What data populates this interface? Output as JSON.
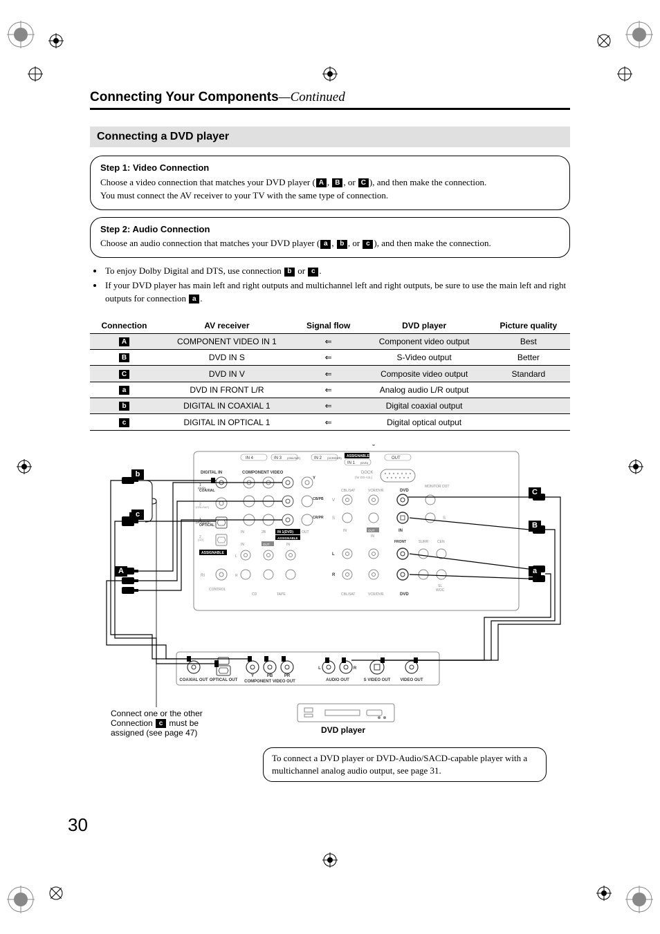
{
  "page_number": "30",
  "header": {
    "title": "Connecting Your Components",
    "continued": "—Continued"
  },
  "subsection_title": "Connecting a DVD player",
  "step1": {
    "title": "Step 1: Video Connection",
    "line1_a": "Choose a video connection that matches your DVD player (",
    "line1_b": ", ",
    "line1_c": ", or ",
    "line1_d": "), and then make the connection.",
    "line2": "You must connect the AV receiver to your TV with the same type of connection."
  },
  "step2": {
    "title": "Step 2: Audio Connection",
    "line1_a": "Choose an audio connection that matches your DVD player (",
    "line1_b": ", ",
    "line1_c": ", or ",
    "line1_d": "), and then make the connection."
  },
  "bullets": {
    "b1_a": "To enjoy Dolby Digital and DTS, use connection ",
    "b1_b": " or ",
    "b1_c": ".",
    "b2_a": "If your DVD player has main left and right outputs and multichannel left and right outputs, be sure to use the main left and right outputs for connection ",
    "b2_b": "."
  },
  "badges": {
    "A": "A",
    "B": "B",
    "C": "C",
    "a": "a",
    "b": "b",
    "c": "c"
  },
  "table": {
    "headers": [
      "Connection",
      "AV receiver",
      "Signal flow",
      "DVD player",
      "Picture quality"
    ],
    "rows": [
      {
        "shaded": true,
        "conn": "A",
        "recv": "COMPONENT VIDEO IN 1",
        "flow": "⇐",
        "player": "Component video output",
        "qual": "Best"
      },
      {
        "shaded": false,
        "conn": "B",
        "recv": "DVD IN S",
        "flow": "⇐",
        "player": "S-Video output",
        "qual": "Better"
      },
      {
        "shaded": true,
        "conn": "C",
        "recv": "DVD IN V",
        "flow": "⇐",
        "player": "Composite video output",
        "qual": "Standard"
      },
      {
        "shaded": false,
        "conn": "a",
        "recv": "DVD IN FRONT L/R",
        "flow": "⇐",
        "player": "Analog audio L/R output",
        "qual": ""
      },
      {
        "shaded": true,
        "conn": "b",
        "recv": "DIGITAL IN COAXIAL 1",
        "flow": "⇐",
        "player": "Digital coaxial output",
        "qual": ""
      },
      {
        "shaded": false,
        "conn": "c",
        "recv": "DIGITAL IN OPTICAL 1",
        "flow": "⇐",
        "player": "Digital optical output",
        "qual": ""
      }
    ]
  },
  "diagram": {
    "caption_top_a": "Connect one or the other",
    "caption_top_b_pre": "Connection ",
    "caption_top_b_post": " must be",
    "caption_top_c": "assigned (see page 47)",
    "dvd_label": "DVD player",
    "receiver_labels": {
      "digital_in": "DIGITAL IN",
      "component_video": "COMPONENT VIDEO",
      "coaxial": "COAXIAL",
      "optical": "OPTICAL",
      "assignable": "ASSIGNABLE",
      "in1_dvd": "IN 1(DVD)",
      "dock": "DOCK",
      "dock_sub": "(for DS-A1L)",
      "monitor_out": "MONITOR OUT",
      "cbl_sat": "CBL/SAT",
      "vcr_dvr": "VCR/DVR",
      "dvd": "DVD",
      "front": "FRONT",
      "surr": "SURR",
      "cen": "CEN",
      "sl": "SL",
      "woc": "WOC",
      "cd": "CD",
      "tape": "TAPE",
      "ri": "RI",
      "control": "CONTROL",
      "in": "IN",
      "out": "OUT",
      "L": "L",
      "R": "R",
      "V": "V",
      "S": "S",
      "Y": "Y",
      "CbPb": "CB/PB",
      "CrPr": "CR/PR",
      "in4": "IN 4",
      "in3": "IN 3",
      "in2": "IN 2",
      "in1": "IN 1",
      "in3_sub": "(CBL/SAT)",
      "in2_sub": "(VCR/DVR)",
      "in1_sub": "(DVD)",
      "dvd_num1": "1",
      "dvd_num2": "2"
    },
    "dvd_back_labels": {
      "coaxial_out": "COAXIAL OUT",
      "optical_out": "OPTICAL OUT",
      "component_out": "COMPONENT VIDEO OUT",
      "Y": "Y",
      "Pb": "PB",
      "Pr": "PR",
      "audio_out": "AUDIO OUT",
      "L": "L",
      "R": "R",
      "svideo_out": "S VIDEO OUT",
      "video_out": "VIDEO OUT"
    }
  },
  "note_box": "To connect a DVD player or DVD-Audio/SACD-capable player with a multichannel analog audio output, see page 31.",
  "colors": {
    "bg": "#ffffff",
    "text": "#000000",
    "shade": "#e8e8e8",
    "subsection_bg": "#e0e0e0",
    "diagram_line": "#555555"
  }
}
